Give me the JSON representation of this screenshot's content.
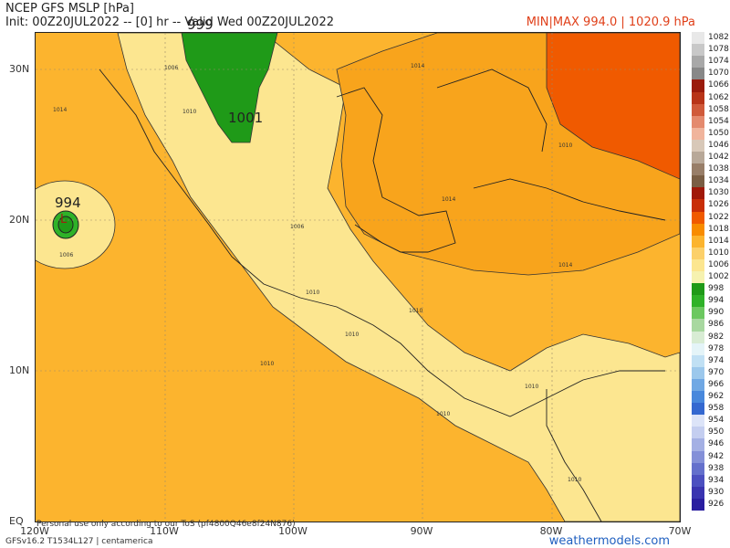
{
  "header": {
    "title": "NCEP GFS MSLP [hPa]",
    "init_line": "Init: 00Z20JUL2022 -- [0] hr -- Valid Wed 00Z20JUL2022",
    "minmax": "MIN|MAX 994.0 | 1020.9 hPa"
  },
  "axes": {
    "lat_labels": [
      "30N",
      "20N",
      "10N",
      "EQ"
    ],
    "lon_labels": [
      "120W",
      "110W",
      "100W",
      "90W",
      "80W",
      "70W"
    ]
  },
  "pressure_labels": {
    "low_center_pacific": "994",
    "low_north": "999",
    "low_mexico": "1001",
    "low_symbol": "L"
  },
  "isobar_labels": [
    "1006",
    "1014",
    "1010",
    "1014",
    "1014",
    "1006",
    "1010",
    "1010",
    "1010",
    "1010",
    "1010",
    "1014",
    "1010",
    "1010",
    "1010",
    "1006"
  ],
  "colorbar": {
    "levels": [
      "1082",
      "1078",
      "1074",
      "1070",
      "1066",
      "1062",
      "1058",
      "1054",
      "1050",
      "1046",
      "1042",
      "1038",
      "1034",
      "1030",
      "1026",
      "1022",
      "1018",
      "1014",
      "1010",
      "1006",
      "1002",
      "998",
      "994",
      "990",
      "986",
      "982",
      "978",
      "974",
      "970",
      "966",
      "962",
      "958",
      "954",
      "950",
      "946",
      "942",
      "938",
      "934",
      "930",
      "926"
    ],
    "colors": [
      "#e8e8e8",
      "#c8c8c8",
      "#a8a8a8",
      "#888888",
      "#9a1b0c",
      "#b83418",
      "#d05a3a",
      "#e48a6e",
      "#f0b49c",
      "#d8c8b8",
      "#b8a898",
      "#987e68",
      "#7a5e44",
      "#a01808",
      "#c82e08",
      "#f05a00",
      "#f88c00",
      "#fcb42e",
      "#fcd06a",
      "#fce690",
      "#f6f2b0",
      "#1f9a18",
      "#2fb228",
      "#6cc860",
      "#a8d8a0",
      "#d8ecd4",
      "#e4f4f8",
      "#c0e0f4",
      "#9cc8ec",
      "#70a8e4",
      "#4888dc",
      "#3468d0",
      "#dce4f8",
      "#c4cef0",
      "#a4b0e4",
      "#8490d8",
      "#6470cc",
      "#4c50c0",
      "#3a34b0",
      "#2a1ea0"
    ]
  },
  "footer": {
    "disclaimer": "Personal use only according to our ToS (pf4800Q46e8f24N876)",
    "model": "GFSv16.2 T1534L127 | centamerica",
    "brand": "weathermodels.com"
  }
}
